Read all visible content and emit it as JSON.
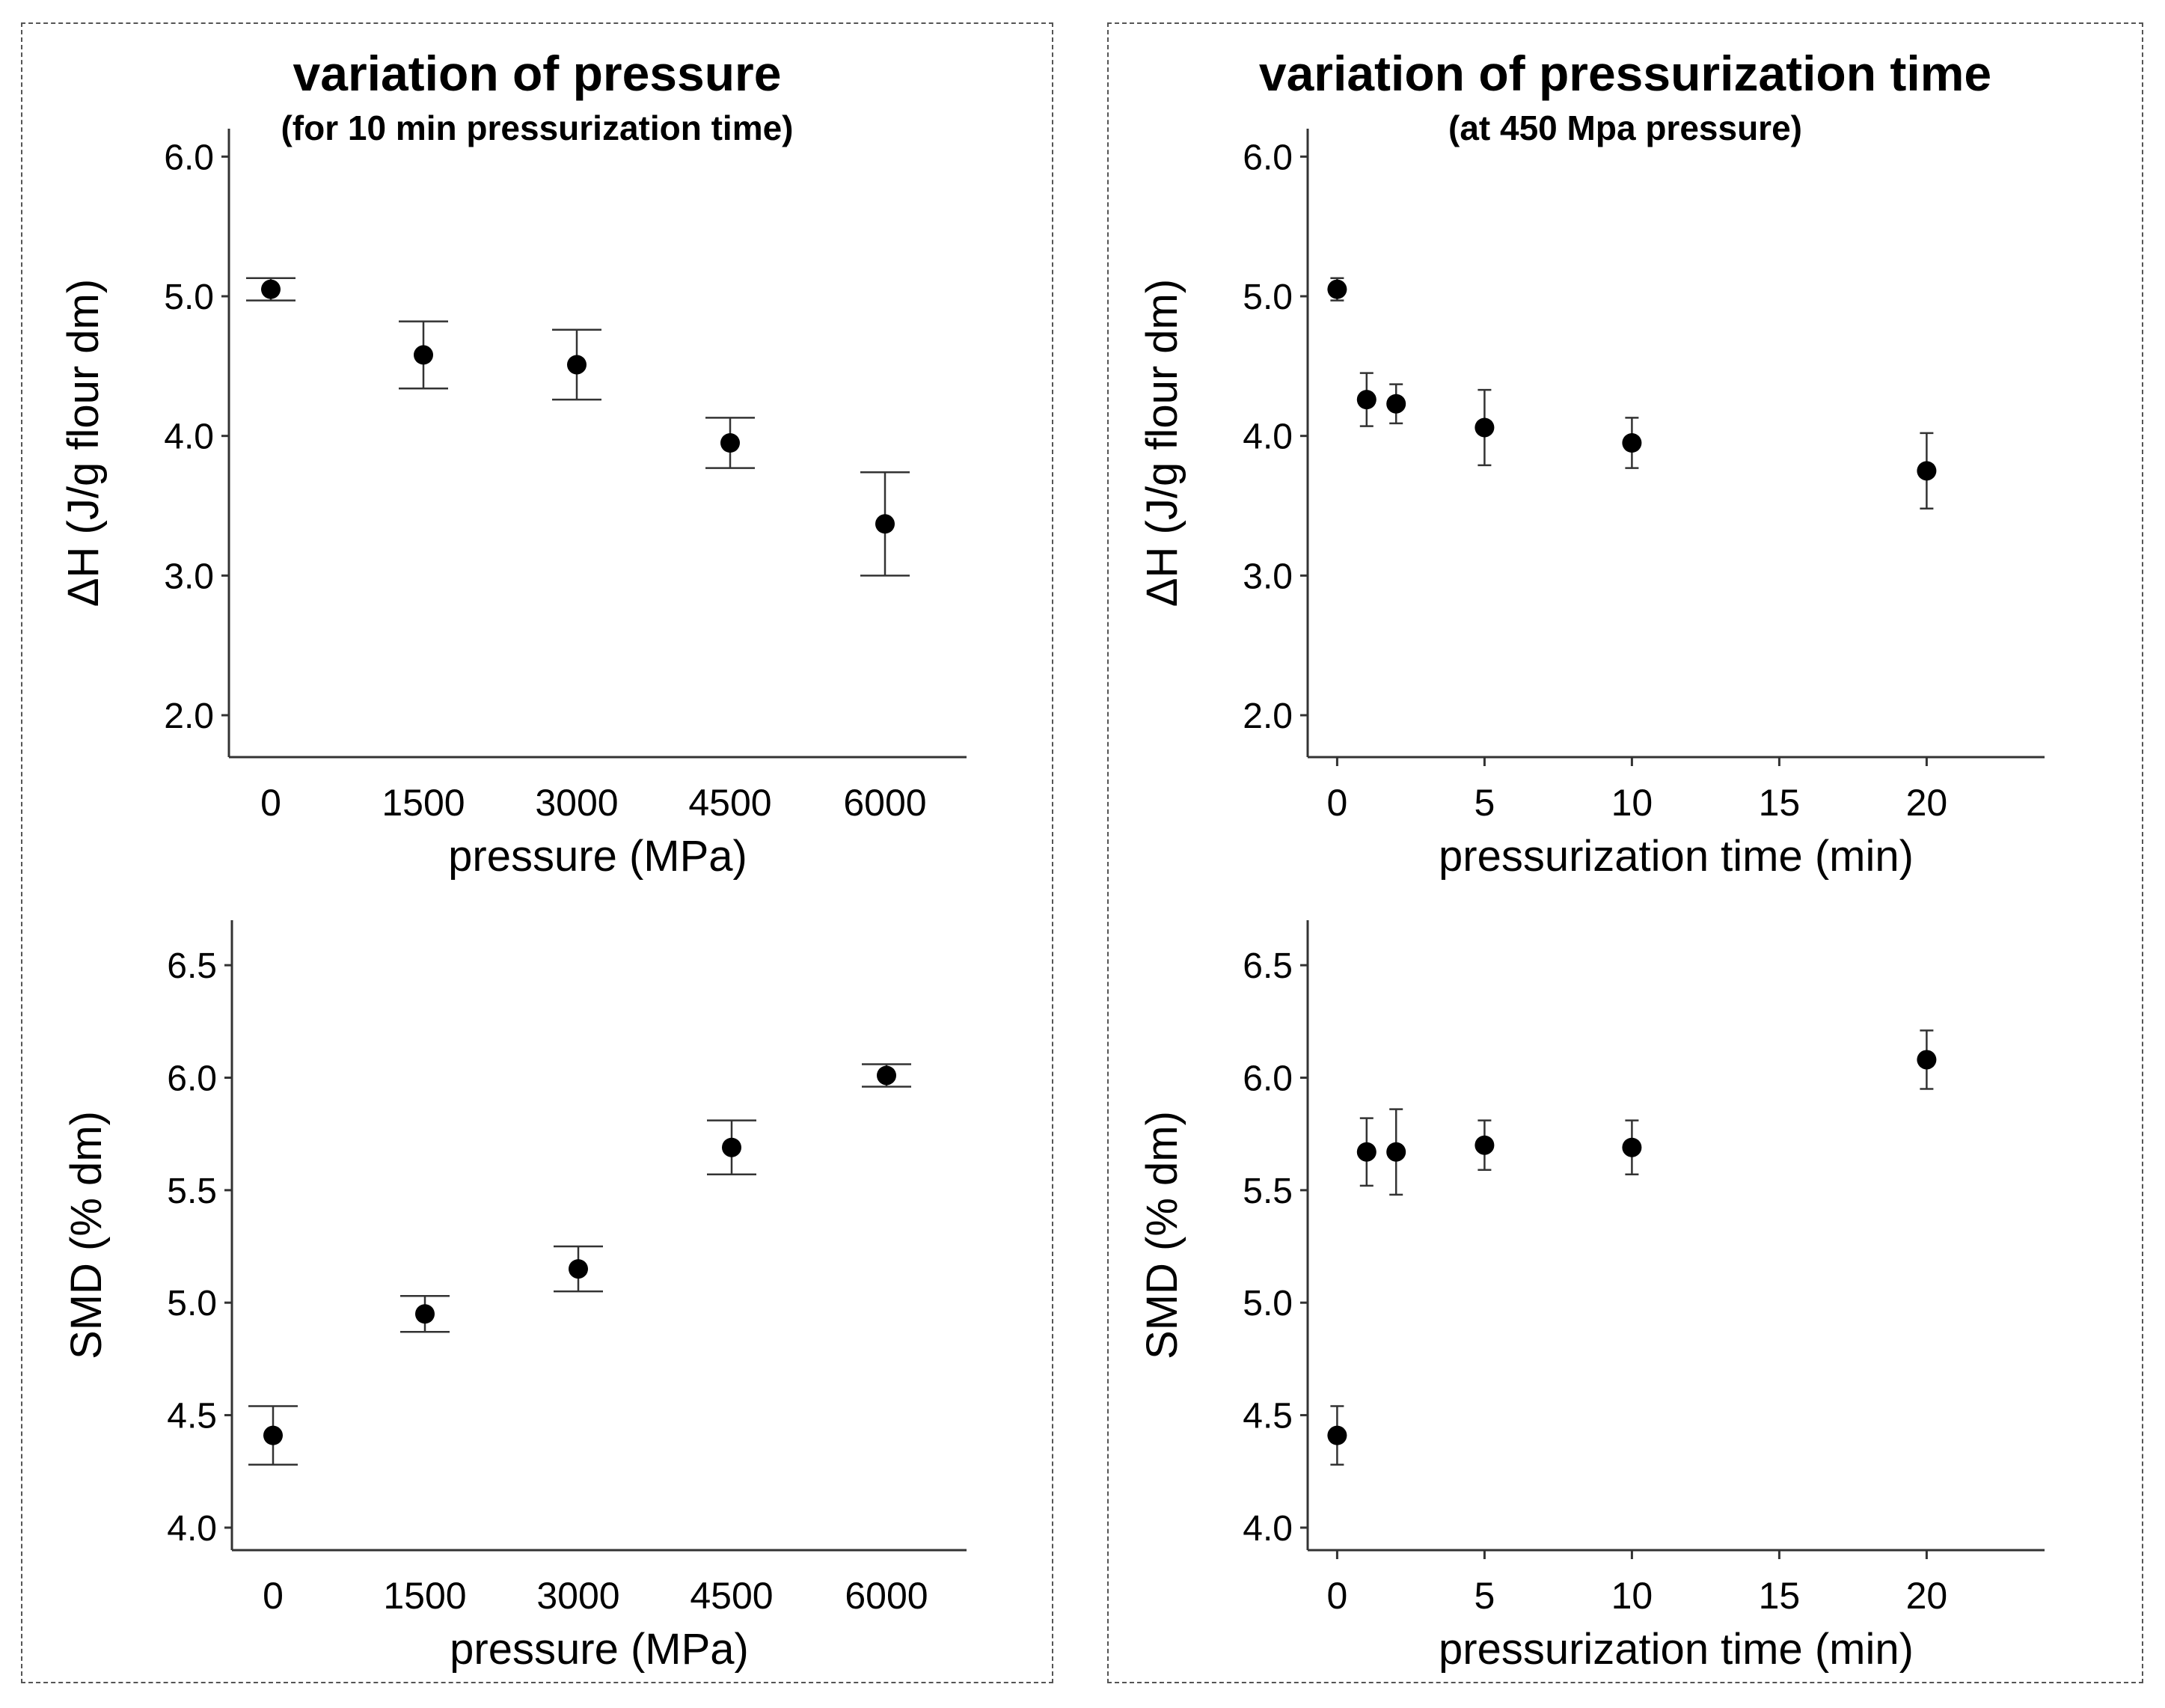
{
  "colors": {
    "axis": "#333333",
    "marker": "#000000",
    "frame": "#555555"
  },
  "left_panel": {
    "title": "variation of pressure",
    "subtitle": "(for 10 min pressurization time)"
  },
  "right_panel": {
    "title": "variation of pressurization time",
    "subtitle": "(at 450 Mpa pressure)"
  },
  "chart_data": [
    {
      "id": "dh-pressure",
      "type": "scatter",
      "xlabel": "pressure (MPa)",
      "ylabel": "ΔH (J/g flour dm)",
      "x_scale": "category",
      "categories": [
        "0",
        "1500",
        "3000",
        "4500",
        "6000"
      ],
      "x": [
        0,
        1500,
        3000,
        4500,
        6000
      ],
      "y": [
        5.05,
        4.58,
        4.51,
        3.95,
        3.37
      ],
      "err": [
        0.08,
        0.24,
        0.25,
        0.18,
        0.37
      ],
      "ylim": [
        1.7,
        6.2
      ],
      "yticks": [
        2.0,
        3.0,
        4.0,
        5.0,
        6.0
      ],
      "ytick_labels": [
        "2.0",
        "3.0",
        "4.0",
        "5.0",
        "6.0"
      ],
      "errorbar_style": "wide-cap"
    },
    {
      "id": "dh-time",
      "type": "scatter",
      "xlabel": "pressurization time (min)",
      "ylabel": "ΔH (J/g flour dm)",
      "x_scale": "linear",
      "xlim": [
        -1,
        24
      ],
      "xticks": [
        0,
        5,
        10,
        15,
        20
      ],
      "xtick_labels": [
        "0",
        "5",
        "10",
        "15",
        "20"
      ],
      "x": [
        0,
        1,
        2,
        5,
        10,
        20
      ],
      "y": [
        5.05,
        4.26,
        4.23,
        4.06,
        3.95,
        3.75
      ],
      "err": [
        0.08,
        0.19,
        0.14,
        0.27,
        0.18,
        0.27
      ],
      "ylim": [
        1.7,
        6.2
      ],
      "yticks": [
        2.0,
        3.0,
        4.0,
        5.0,
        6.0
      ],
      "ytick_labels": [
        "2.0",
        "3.0",
        "4.0",
        "5.0",
        "6.0"
      ],
      "errorbar_style": "small-cap"
    },
    {
      "id": "smd-pressure",
      "type": "scatter",
      "xlabel": "pressure (MPa)",
      "ylabel": "SMD (% dm)",
      "x_scale": "category",
      "categories": [
        "0",
        "1500",
        "3000",
        "4500",
        "6000"
      ],
      "x": [
        0,
        1500,
        3000,
        4500,
        6000
      ],
      "y": [
        4.41,
        4.95,
        5.15,
        5.69,
        6.01
      ],
      "err": [
        0.13,
        0.08,
        0.1,
        0.12,
        0.05
      ],
      "ylim": [
        3.9,
        6.7
      ],
      "yticks": [
        4.0,
        4.5,
        5.0,
        5.5,
        6.0,
        6.5
      ],
      "ytick_labels": [
        "4.0",
        "4.5",
        "5.0",
        "5.5",
        "6.0",
        "6.5"
      ],
      "errorbar_style": "wide-cap"
    },
    {
      "id": "smd-time",
      "type": "scatter",
      "xlabel": "pressurization time (min)",
      "ylabel": "SMD (% dm)",
      "x_scale": "linear",
      "xlim": [
        -1,
        24
      ],
      "xticks": [
        0,
        5,
        10,
        15,
        20
      ],
      "xtick_labels": [
        "0",
        "5",
        "10",
        "15",
        "20"
      ],
      "x": [
        0,
        1,
        2,
        5,
        10,
        20
      ],
      "y": [
        4.41,
        5.67,
        5.67,
        5.7,
        5.69,
        6.08
      ],
      "err": [
        0.13,
        0.15,
        0.19,
        0.11,
        0.12,
        0.13
      ],
      "ylim": [
        3.9,
        6.7
      ],
      "yticks": [
        4.0,
        4.5,
        5.0,
        5.5,
        6.0,
        6.5
      ],
      "ytick_labels": [
        "4.0",
        "4.5",
        "5.0",
        "5.5",
        "6.0",
        "6.5"
      ],
      "errorbar_style": "small-cap"
    }
  ]
}
